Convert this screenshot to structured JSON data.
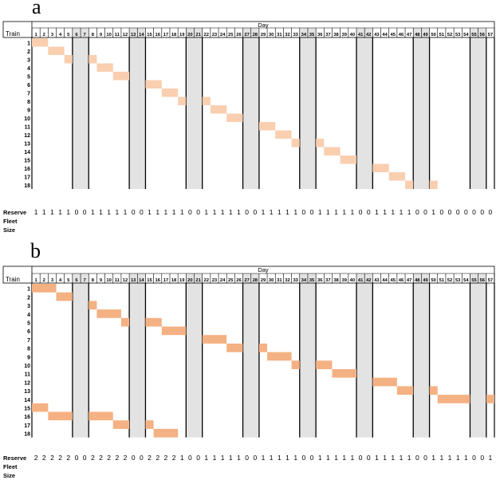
{
  "panel_a": {
    "label": "a",
    "day_header": "Day",
    "train_header": "Train",
    "days": [
      "1",
      "2",
      "3",
      "4",
      "5",
      "6",
      "7",
      "8",
      "9",
      "10",
      "11",
      "12",
      "13",
      "14",
      "15",
      "16",
      "17",
      "18",
      "19",
      "20",
      "21",
      "22",
      "23",
      "24",
      "25",
      "26",
      "27",
      "28",
      "29",
      "30",
      "31",
      "32",
      "33",
      "34",
      "35",
      "36",
      "37",
      "38",
      "39",
      "40",
      "41",
      "42",
      "43",
      "44",
      "45",
      "46",
      "47",
      "48",
      "49",
      "50",
      "51",
      "52",
      "53",
      "54",
      "55",
      "56",
      "57"
    ],
    "trains": [
      "1",
      "2",
      "3",
      "4",
      "5",
      "6",
      "7",
      "8",
      "9",
      "10",
      "11",
      "12",
      "13",
      "14",
      "15",
      "16",
      "17",
      "18"
    ],
    "weekend_days": [
      6,
      13,
      20,
      27,
      34,
      41,
      48,
      55
    ],
    "bold_lines_after_day": [
      5,
      7,
      12,
      14,
      19,
      21,
      26,
      28,
      33,
      35,
      40,
      42,
      47,
      49,
      54,
      56
    ],
    "reserve_label": [
      "Reserve",
      "Fleet",
      "Size"
    ],
    "reserve_values": [
      "1",
      "1",
      "1",
      "1",
      "1",
      "0",
      "0",
      "1",
      "1",
      "1",
      "1",
      "1",
      "0",
      "0",
      "1",
      "1",
      "1",
      "1",
      "1",
      "0",
      "0",
      "1",
      "1",
      "1",
      "1",
      "1",
      "0",
      "0",
      "1",
      "1",
      "1",
      "1",
      "1",
      "0",
      "0",
      "1",
      "1",
      "1",
      "1",
      "1",
      "0",
      "0",
      "1",
      "1",
      "1",
      "1",
      "1",
      "0",
      "0",
      "1",
      "0",
      "0",
      "0",
      "0",
      "0",
      "0",
      "0"
    ],
    "bar_color": "#f9cfb0",
    "weekend_color": "#e3e3e3",
    "assignments": [
      {
        "row": 1,
        "start": 1,
        "end": 2
      },
      {
        "row": 2,
        "start": 3,
        "end": 4
      },
      {
        "row": 3,
        "start": 5,
        "end": 5
      },
      {
        "row": 3,
        "start": 8,
        "end": 8
      },
      {
        "row": 4,
        "start": 9,
        "end": 10
      },
      {
        "row": 5,
        "start": 11,
        "end": 12
      },
      {
        "row": 6,
        "start": 15,
        "end": 16
      },
      {
        "row": 7,
        "start": 17,
        "end": 18
      },
      {
        "row": 8,
        "start": 19,
        "end": 19
      },
      {
        "row": 8,
        "start": 22,
        "end": 22
      },
      {
        "row": 9,
        "start": 23,
        "end": 24
      },
      {
        "row": 10,
        "start": 25,
        "end": 26
      },
      {
        "row": 11,
        "start": 29,
        "end": 30
      },
      {
        "row": 12,
        "start": 31,
        "end": 32
      },
      {
        "row": 13,
        "start": 33,
        "end": 33
      },
      {
        "row": 13,
        "start": 36,
        "end": 36
      },
      {
        "row": 14,
        "start": 37,
        "end": 38
      },
      {
        "row": 15,
        "start": 39,
        "end": 40
      },
      {
        "row": 16,
        "start": 43,
        "end": 44
      },
      {
        "row": 17,
        "start": 45,
        "end": 46
      },
      {
        "row": 18,
        "start": 47,
        "end": 47
      },
      {
        "row": 18,
        "start": 50,
        "end": 50
      }
    ]
  },
  "panel_b": {
    "label": "b",
    "day_header": "Day",
    "train_header": "Train",
    "days": [
      "1",
      "2",
      "3",
      "4",
      "5",
      "6",
      "7",
      "8",
      "9",
      "10",
      "11",
      "12",
      "13",
      "14",
      "15",
      "16",
      "17",
      "18",
      "19",
      "20",
      "21",
      "22",
      "23",
      "24",
      "25",
      "26",
      "27",
      "28",
      "29",
      "30",
      "31",
      "32",
      "33",
      "34",
      "35",
      "36",
      "37",
      "38",
      "39",
      "40",
      "41",
      "42",
      "43",
      "44",
      "45",
      "46",
      "47",
      "48",
      "49",
      "50",
      "51",
      "52",
      "53",
      "54",
      "55",
      "56",
      "57"
    ],
    "trains": [
      "1",
      "2",
      "3",
      "4",
      "5",
      "6",
      "7",
      "8",
      "9",
      "10",
      "11",
      "12",
      "13",
      "14",
      "15",
      "16",
      "17",
      "18"
    ],
    "weekend_days": [
      6,
      13,
      20,
      27,
      34,
      41,
      48,
      55
    ],
    "bold_lines_after_day": [
      5,
      7,
      12,
      14,
      19,
      21,
      26,
      28,
      33,
      35,
      40,
      42,
      47,
      49,
      54,
      56
    ],
    "reserve_label": [
      "Reserve",
      "Fleet",
      "Size"
    ],
    "reserve_values": [
      "2",
      "2",
      "2",
      "2",
      "2",
      "0",
      "0",
      "2",
      "2",
      "2",
      "2",
      "2",
      "0",
      "0",
      "2",
      "2",
      "2",
      "2",
      "1",
      "0",
      "0",
      "1",
      "1",
      "1",
      "1",
      "1",
      "0",
      "0",
      "1",
      "1",
      "1",
      "1",
      "1",
      "0",
      "0",
      "1",
      "1",
      "1",
      "1",
      "1",
      "0",
      "0",
      "1",
      "1",
      "1",
      "1",
      "1",
      "0",
      "0",
      "1",
      "1",
      "1",
      "1",
      "1",
      "0",
      "0",
      "1"
    ],
    "bar_color": "#f4b183",
    "weekend_color": "#e3e3e3",
    "assignments": [
      {
        "row": 1,
        "start": 1,
        "end": 3
      },
      {
        "row": 2,
        "start": 4,
        "end": 5
      },
      {
        "row": 3,
        "start": 8,
        "end": 8
      },
      {
        "row": 4,
        "start": 9,
        "end": 11
      },
      {
        "row": 5,
        "start": 12,
        "end": 12
      },
      {
        "row": 5,
        "start": 15,
        "end": 16
      },
      {
        "row": 6,
        "start": 17,
        "end": 19
      },
      {
        "row": 7,
        "start": 22,
        "end": 24
      },
      {
        "row": 8,
        "start": 25,
        "end": 26
      },
      {
        "row": 8,
        "start": 29,
        "end": 29
      },
      {
        "row": 9,
        "start": 30,
        "end": 32
      },
      {
        "row": 10,
        "start": 33,
        "end": 33
      },
      {
        "row": 10,
        "start": 36,
        "end": 37
      },
      {
        "row": 11,
        "start": 38,
        "end": 40
      },
      {
        "row": 12,
        "start": 43,
        "end": 45
      },
      {
        "row": 13,
        "start": 46,
        "end": 47
      },
      {
        "row": 13,
        "start": 50,
        "end": 50
      },
      {
        "row": 14,
        "start": 51,
        "end": 54
      },
      {
        "row": 14,
        "start": 57,
        "end": 57
      },
      {
        "row": 15,
        "start": 1,
        "end": 2
      },
      {
        "row": 16,
        "start": 3,
        "end": 5
      },
      {
        "row": 16,
        "start": 8,
        "end": 10
      },
      {
        "row": 17,
        "start": 11,
        "end": 12
      },
      {
        "row": 17,
        "start": 15,
        "end": 15
      },
      {
        "row": 18,
        "start": 16,
        "end": 18
      }
    ]
  }
}
